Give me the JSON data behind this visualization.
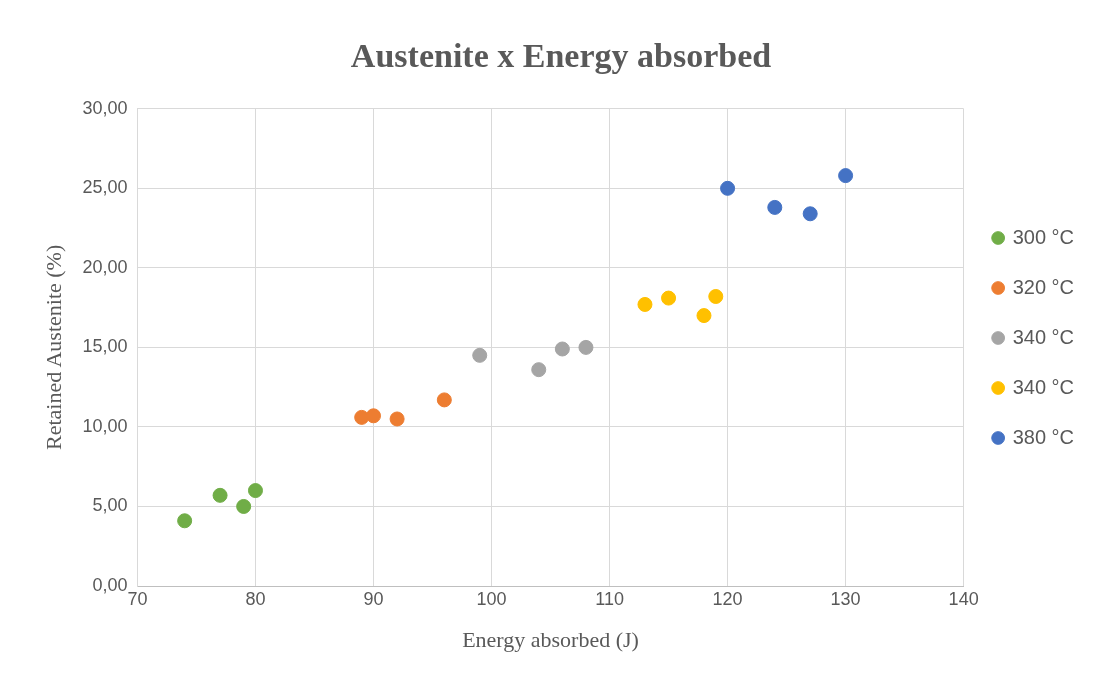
{
  "chart_data": {
    "type": "scatter",
    "title": "Austenite x Energy absorbed",
    "xlabel": "Energy absorbed (J)",
    "ylabel": "Retained Austenite (%)",
    "series": [
      {
        "name": "300 °C",
        "color": "#70ad47",
        "x": [
          74,
          77,
          79,
          80
        ],
        "values": [
          4.1,
          5.7,
          5.0,
          6.0
        ]
      },
      {
        "name": "320 °C",
        "color": "#ed7d31",
        "x": [
          89,
          90,
          92,
          96
        ],
        "values": [
          10.6,
          10.7,
          10.5,
          11.7
        ]
      },
      {
        "name": "340 °C",
        "color": "#a5a5a5",
        "x": [
          99,
          104,
          106,
          108
        ],
        "values": [
          14.5,
          13.6,
          14.9,
          15.0
        ]
      },
      {
        "name": "340 °C",
        "color": "#ffc000",
        "x": [
          113,
          115,
          118,
          119
        ],
        "values": [
          17.7,
          18.1,
          17.0,
          18.2
        ]
      },
      {
        "name": "380 °C",
        "color": "#4472c4",
        "x": [
          120,
          124,
          127,
          130
        ],
        "values": [
          25.0,
          23.8,
          23.4,
          25.8
        ]
      }
    ],
    "xlim": [
      70,
      140
    ],
    "xticks": [
      70,
      80,
      90,
      100,
      110,
      120,
      130,
      140
    ],
    "ylim": [
      0,
      30
    ],
    "yticks": [
      {
        "value": 0,
        "label": "0,00"
      },
      {
        "value": 5,
        "label": "5,00"
      },
      {
        "value": 10,
        "label": "10,00"
      },
      {
        "value": 15,
        "label": "15,00"
      },
      {
        "value": 20,
        "label": "20,00"
      },
      {
        "value": 25,
        "label": "25,00"
      },
      {
        "value": 30,
        "label": "30,00"
      }
    ],
    "grid": true,
    "legend": "right",
    "marker": "circle"
  }
}
